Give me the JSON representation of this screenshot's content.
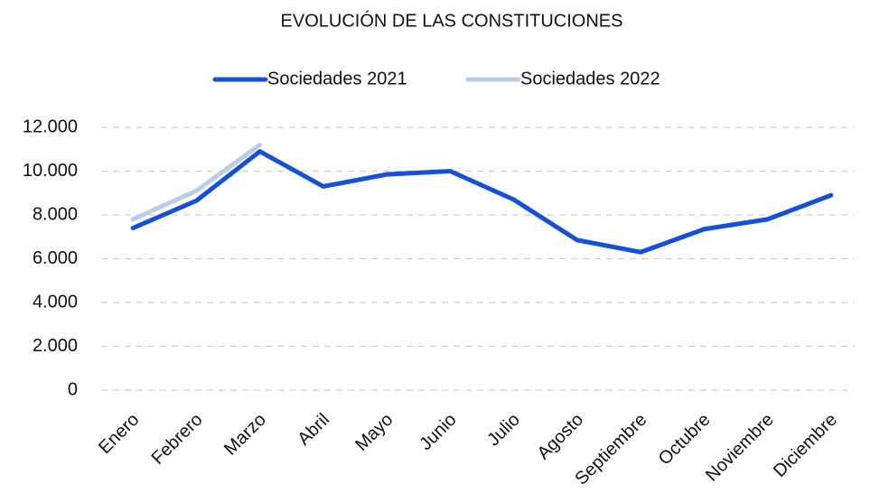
{
  "chart_data": {
    "type": "line",
    "title": "EVOLUCIÓN DE LAS CONSTITUCIONES",
    "categories": [
      "Enero",
      "Febrero",
      "Marzo",
      "Abril",
      "Mayo",
      "Junio",
      "Julio",
      "Agosto",
      "Septiembre",
      "Octubre",
      "Noviembre",
      "Diciembre"
    ],
    "series": [
      {
        "name": "Sociedades 2021",
        "color": "#1550d8",
        "values": [
          7400,
          8650,
          10900,
          9300,
          9850,
          10000,
          8700,
          6850,
          6300,
          7350,
          7800,
          8900
        ]
      },
      {
        "name": "Sociedades 2022",
        "color": "#b9cde4",
        "values": [
          7800,
          9100,
          11200,
          null,
          null,
          null,
          null,
          null,
          null,
          null,
          null,
          null
        ]
      }
    ],
    "ylim": [
      0,
      12000
    ],
    "yticks": [
      0,
      {
        "value": 2000,
        "label": "2.000"
      },
      {
        "value": 4000,
        "label": "4.000"
      },
      {
        "value": 6000,
        "label": "6.000"
      },
      {
        "value": 8000,
        "label": "8.000"
      },
      {
        "value": 10000,
        "label": "10.000"
      },
      {
        "value": 12000,
        "label": "12.000"
      }
    ],
    "grid": true,
    "legend": "top"
  }
}
